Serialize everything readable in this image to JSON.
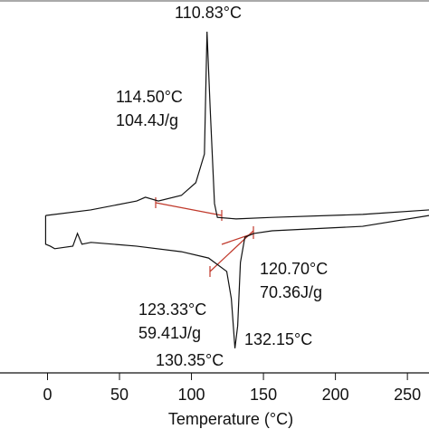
{
  "chart_data": {
    "type": "line",
    "x_label": "Temperature (°C)",
    "xlim": [
      -33,
      265
    ],
    "xticks": [
      0,
      50,
      100,
      150,
      200,
      250
    ],
    "ylim": [
      0,
      100
    ],
    "annotations": [
      "110.83°C",
      "114.50°C",
      "104.4J/g",
      "120.70°C",
      "70.36J/g",
      "123.33°C",
      "59.41J/g",
      "132.15°C",
      "130.35°C"
    ],
    "series": [
      {
        "color": "#111111",
        "x": [
          -1.3,
          30,
          62,
          68,
          77,
          93,
          103,
          109,
          110.8,
          113,
          116,
          118,
          131,
          156,
          219,
          265
        ],
        "values": [
          42.2,
          43.7,
          46.1,
          47.1,
          46.1,
          47.6,
          51.0,
          58.7,
          91.5,
          70.9,
          45.4,
          41.7,
          41.3,
          41.7,
          42.5,
          43.7
        ]
      },
      {
        "color": "#111111",
        "x": [
          265,
          218.9,
          156,
          143.4,
          137.1,
          134,
          132.1,
          130.2,
          127.7,
          124.5,
          111.9,
          93,
          61.6,
          30.2,
          23.9,
          20.8,
          17.6,
          5,
          1.9,
          -1.3,
          -1.3
        ],
        "values": [
          42.2,
          39.3,
          38.1,
          37.4,
          36.4,
          29.6,
          12.6,
          6.6,
          19.9,
          27.2,
          30.8,
          32.5,
          34.0,
          35.0,
          34.5,
          37.4,
          34.0,
          33.3,
          34.0,
          34.5,
          42.2
        ]
      }
    ]
  }
}
